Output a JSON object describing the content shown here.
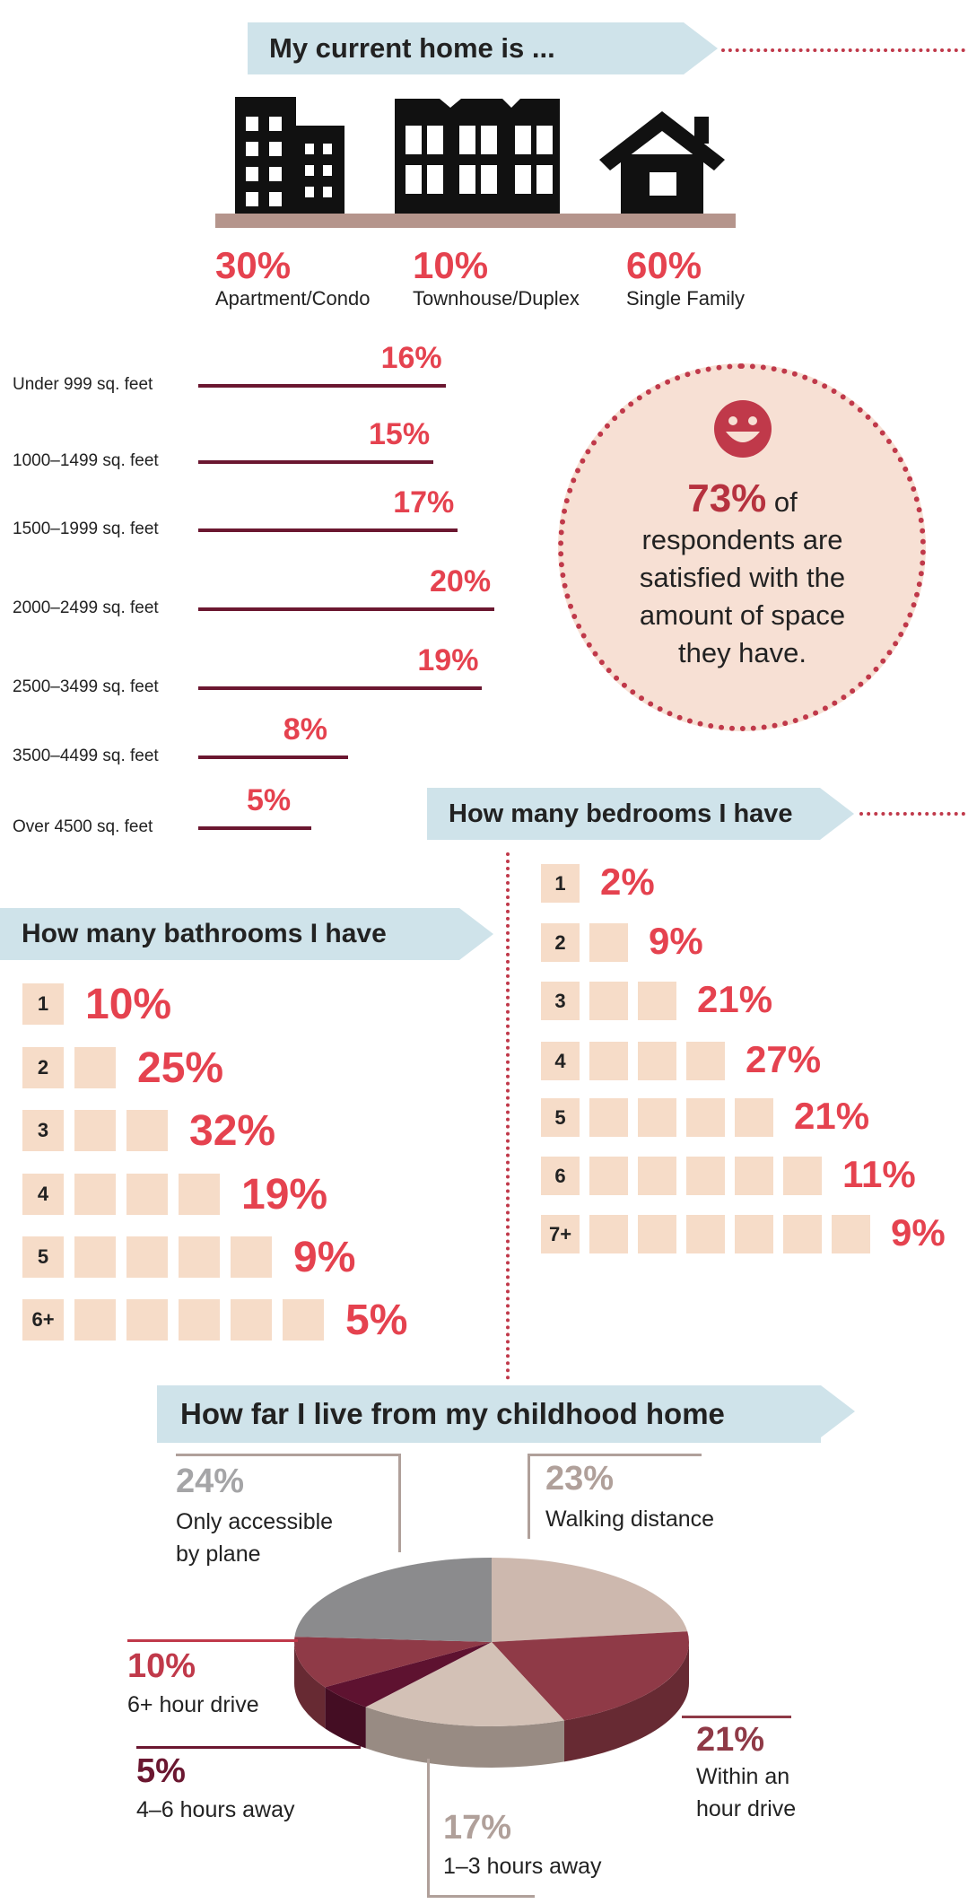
{
  "colors": {
    "banner": "#cfe3ea",
    "accent": "#e5424f",
    "dark_red": "#6b1730",
    "bar_line": "#6b1730",
    "box": "#f6dcc8",
    "circle": "#f7e0d4",
    "dots": "#c0394a",
    "ground": "#b5958c"
  },
  "current_home": {
    "title": "My current home is ...",
    "items": [
      {
        "pct": "30%",
        "label": "Apartment/Condo",
        "icon": "apartment-building-icon"
      },
      {
        "pct": "10%",
        "label": "Townhouse/Duplex",
        "icon": "townhouse-icon"
      },
      {
        "pct": "60%",
        "label": "Single Family",
        "icon": "house-icon"
      }
    ]
  },
  "square_feet": [
    {
      "label": "Under 999 sq. feet",
      "pct": "16%",
      "value": 16
    },
    {
      "label": "1000–1499 sq. feet",
      "pct": "15%",
      "value": 15
    },
    {
      "label": "1500–1999 sq. feet",
      "pct": "17%",
      "value": 17
    },
    {
      "label": "2000–2499 sq. feet",
      "pct": "20%",
      "value": 20
    },
    {
      "label": "2500–3499 sq. feet",
      "pct": "19%",
      "value": 19
    },
    {
      "label": "3500–4499 sq. feet",
      "pct": "8%",
      "value": 8
    },
    {
      "label": "Over 4500 sq. feet",
      "pct": "5%",
      "value": 5
    }
  ],
  "satisfaction": {
    "icon": "smiley-face-icon",
    "pct": "73%",
    "text_1": "of",
    "text_2": "respondents are",
    "text_3": "satisfied with the",
    "text_4": "amount of space",
    "text_5": "they have."
  },
  "bedrooms": {
    "title": "How many bedrooms I have",
    "rows": [
      {
        "n": "1",
        "pct": "2%",
        "value": 2
      },
      {
        "n": "2",
        "pct": "9%",
        "value": 9
      },
      {
        "n": "3",
        "pct": "21%",
        "value": 21
      },
      {
        "n": "4",
        "pct": "27%",
        "value": 27
      },
      {
        "n": "5",
        "pct": "21%",
        "value": 21
      },
      {
        "n": "6",
        "pct": "11%",
        "value": 11
      },
      {
        "n": "7+",
        "pct": "9%",
        "value": 9
      }
    ]
  },
  "bathrooms": {
    "title": "How many bathrooms I have",
    "rows": [
      {
        "n": "1",
        "pct": "10%",
        "value": 10
      },
      {
        "n": "2",
        "pct": "25%",
        "value": 25
      },
      {
        "n": "3",
        "pct": "32%",
        "value": 32
      },
      {
        "n": "4",
        "pct": "19%",
        "value": 19
      },
      {
        "n": "5",
        "pct": "9%",
        "value": 9
      },
      {
        "n": "6+",
        "pct": "5%",
        "value": 5
      }
    ]
  },
  "childhood": {
    "title": "How far I live from my childhood home",
    "slices": [
      {
        "pct": "23%",
        "value": 23,
        "label_1": "Walking distance",
        "label_2": "",
        "color": "#cdb8ae",
        "pct_color": "#b0a09a"
      },
      {
        "pct": "21%",
        "value": 21,
        "label_1": "Within an",
        "label_2": "hour drive",
        "color": "#8f3a47",
        "pct_color": "#8f3a47"
      },
      {
        "pct": "17%",
        "value": 17,
        "label_1": "1–3 hours away",
        "label_2": "",
        "color": "#d3c1b6",
        "pct_color": "#b0a09a"
      },
      {
        "pct": "5%",
        "value": 5,
        "label_1": "4–6 hours away",
        "label_2": "",
        "color": "#5e1230",
        "pct_color": "#6b1730"
      },
      {
        "pct": "10%",
        "value": 10,
        "label_1": "6+ hour drive",
        "label_2": "",
        "color": "#8f3a47",
        "pct_color": "#c0394a"
      },
      {
        "pct": "24%",
        "value": 24,
        "label_1": "Only accessible",
        "label_2": "by plane",
        "color": "#8b8b8d",
        "pct_color": "#a5a5a7"
      }
    ]
  },
  "chart_data": [
    {
      "type": "bar",
      "categories": [
        "Apartment/Condo",
        "Townhouse/Duplex",
        "Single Family"
      ],
      "values": [
        30,
        10,
        60
      ],
      "title": "My current home is ..."
    },
    {
      "type": "bar",
      "categories": [
        "Under 999 sq. feet",
        "1000–1499 sq. feet",
        "1500–1999 sq. feet",
        "2000–2499 sq. feet",
        "2500–3499 sq. feet",
        "3500–4499 sq. feet",
        "Over 4500 sq. feet"
      ],
      "values": [
        16,
        15,
        17,
        20,
        19,
        8,
        5
      ]
    },
    {
      "type": "bar",
      "categories": [
        "1",
        "2",
        "3",
        "4",
        "5",
        "6",
        "7+"
      ],
      "values": [
        2,
        9,
        21,
        27,
        21,
        11,
        9
      ],
      "title": "How many bedrooms I have"
    },
    {
      "type": "bar",
      "categories": [
        "1",
        "2",
        "3",
        "4",
        "5",
        "6+"
      ],
      "values": [
        10,
        25,
        32,
        19,
        9,
        5
      ],
      "title": "How many bathrooms I have"
    },
    {
      "type": "pie",
      "categories": [
        "Walking distance",
        "Within an hour drive",
        "1–3 hours away",
        "4–6 hours away",
        "6+ hour drive",
        "Only accessible by plane"
      ],
      "values": [
        23,
        21,
        17,
        5,
        10,
        24
      ],
      "title": "How far I live from my childhood home"
    }
  ]
}
